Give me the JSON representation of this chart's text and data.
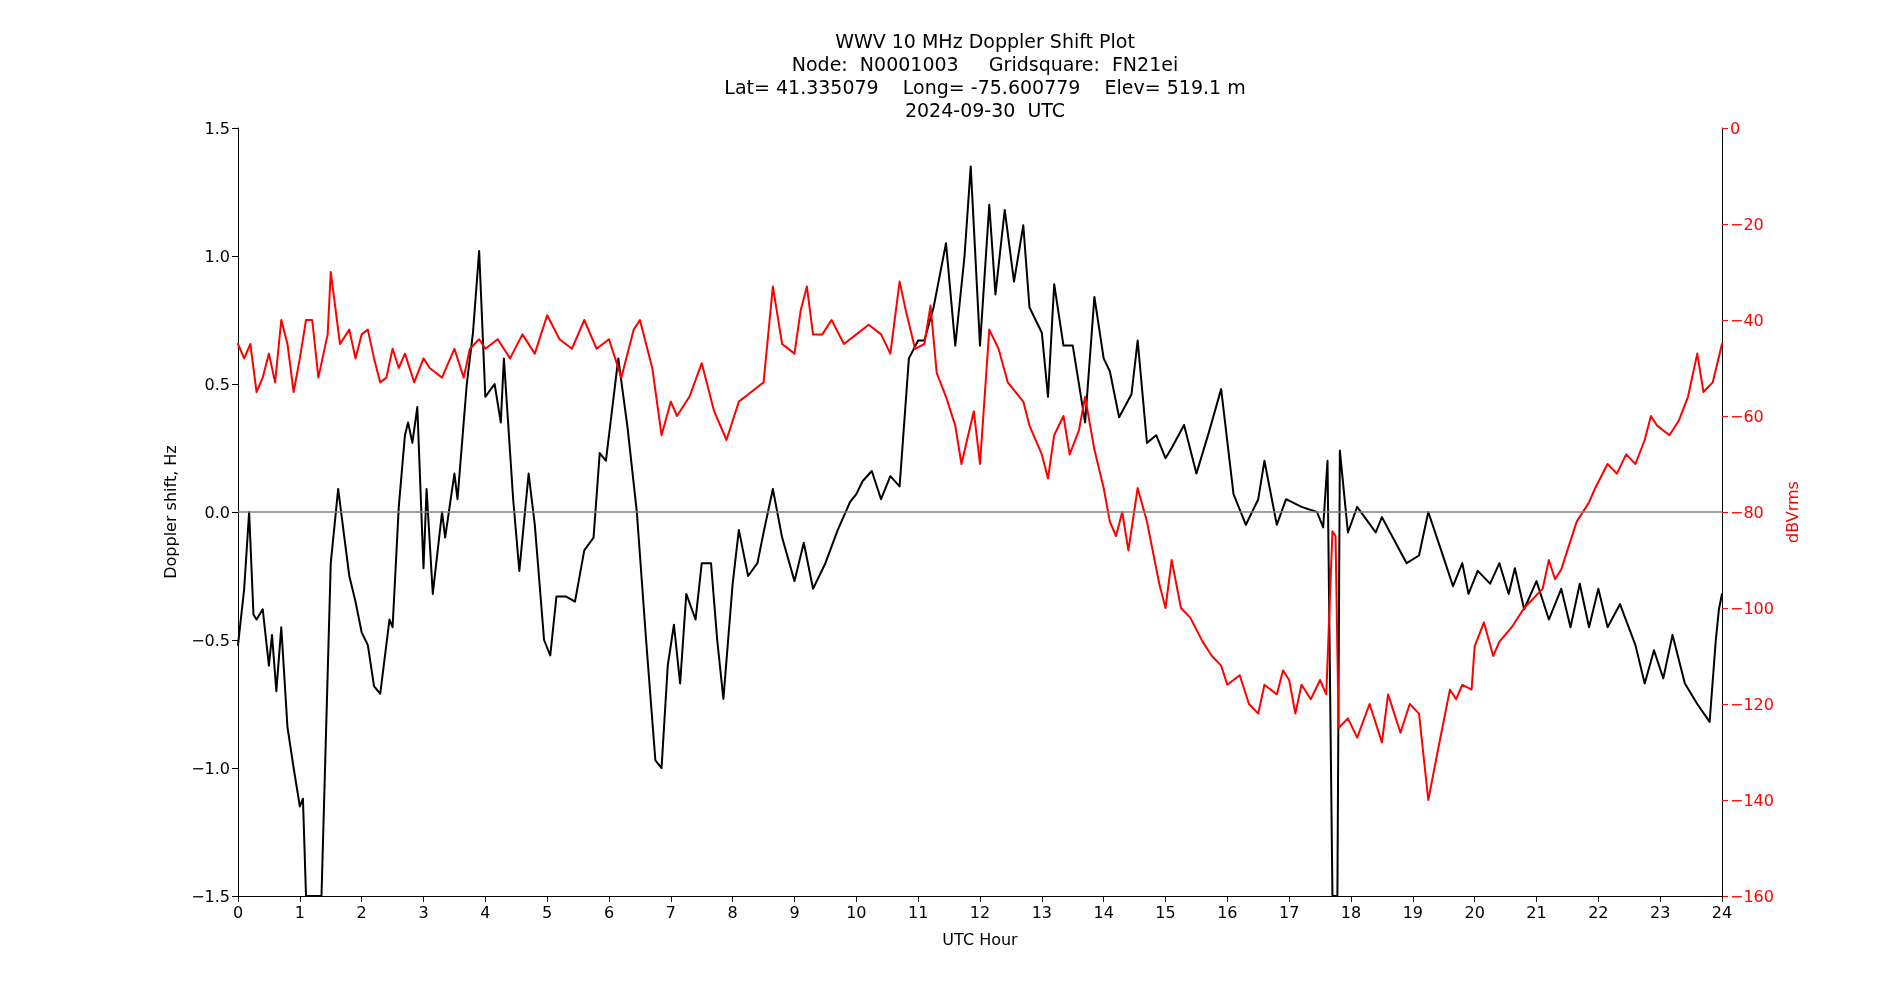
{
  "chart_data": {
    "type": "line",
    "title": "WWV 10 MHz Doppler Shift Plot",
    "subtitle": "Node:  N0001003     Gridsquare:  FN21ei\nLat= 41.335079    Long= -75.600779    Elev= 519.1 m\n2024-09-30  UTC",
    "xlabel": "UTC Hour",
    "ylabel": "Doppler shift, Hz",
    "y2label": "dBVrms",
    "xlim": [
      0,
      24
    ],
    "xticks": [
      0,
      1,
      2,
      3,
      4,
      5,
      6,
      7,
      8,
      9,
      10,
      11,
      12,
      13,
      14,
      15,
      16,
      17,
      18,
      19,
      20,
      21,
      22,
      23,
      24
    ],
    "ylim": [
      -1.5,
      1.5
    ],
    "yticks": [
      {
        "value": -1.5,
        "label": "−1.5"
      },
      {
        "value": -1,
        "label": "−1.0"
      },
      {
        "value": -0.5,
        "label": "−0.5"
      },
      {
        "value": 0,
        "label": "0.0"
      },
      {
        "value": 0.5,
        "label": "0.5"
      },
      {
        "value": 1,
        "label": "1.0"
      },
      {
        "value": 1.5,
        "label": "1.5"
      }
    ],
    "y2lim": [
      -160,
      0
    ],
    "y2ticks": [
      {
        "value": -160,
        "label": "−160"
      },
      {
        "value": -140,
        "label": "−140"
      },
      {
        "value": -120,
        "label": "−120"
      },
      {
        "value": -100,
        "label": "−100"
      },
      {
        "value": -80,
        "label": "−80"
      },
      {
        "value": -60,
        "label": "−60"
      },
      {
        "value": -40,
        "label": "−40"
      },
      {
        "value": -20,
        "label": "−20"
      },
      0
    ],
    "grid": false,
    "ref_lines": [
      {
        "axis": "y",
        "value": 0,
        "color": "#808080"
      }
    ],
    "series": [
      {
        "color": "#000000",
        "x": [
          0,
          0.1,
          0.18,
          0.25,
          0.3,
          0.4,
          0.5,
          0.55,
          0.62,
          0.7,
          0.8,
          0.9,
          1.0,
          1.05,
          1.1,
          1.35,
          1.5,
          1.62,
          1.8,
          1.9,
          2.0,
          2.1,
          2.2,
          2.3,
          2.45,
          2.5,
          2.6,
          2.7,
          2.75,
          2.82,
          2.9,
          3.0,
          3.05,
          3.15,
          3.3,
          3.35,
          3.5,
          3.55,
          3.7,
          3.8,
          3.9,
          4.0,
          4.15,
          4.25,
          4.3,
          4.45,
          4.55,
          4.7,
          4.8,
          4.95,
          5.05,
          5.15,
          5.3,
          5.45,
          5.6,
          5.75,
          5.85,
          5.95,
          6.05,
          6.15,
          6.3,
          6.45,
          6.6,
          6.75,
          6.85,
          6.95,
          7.05,
          7.15,
          7.25,
          7.4,
          7.5,
          7.65,
          7.75,
          7.85,
          8.0,
          8.1,
          8.25,
          8.4,
          8.5,
          8.65,
          8.8,
          9.0,
          9.15,
          9.3,
          9.5,
          9.7,
          9.9,
          10.0,
          10.1,
          10.25,
          10.4,
          10.55,
          10.7,
          10.85,
          11.0,
          11.1,
          11.25,
          11.45,
          11.6,
          11.75,
          11.85,
          12.0,
          12.15,
          12.25,
          12.4,
          12.55,
          12.7,
          12.8,
          13.0,
          13.1,
          13.2,
          13.35,
          13.5,
          13.7,
          13.85,
          14.0,
          14.1,
          14.25,
          14.45,
          14.55,
          14.7,
          14.85,
          15.0,
          15.1,
          15.3,
          15.5,
          15.7,
          15.9,
          16.1,
          16.3,
          16.5,
          16.6,
          16.8,
          16.95,
          17.2,
          17.45,
          17.55,
          17.62,
          17.7,
          17.78,
          17.82,
          17.95,
          18.1,
          18.25,
          18.4,
          18.5,
          18.7,
          18.9,
          19.1,
          19.25,
          19.5,
          19.65,
          19.8,
          19.9,
          20.05,
          20.25,
          20.4,
          20.55,
          20.65,
          20.8,
          21.0,
          21.2,
          21.4,
          21.55,
          21.7,
          21.85,
          22.0,
          22.15,
          22.35,
          22.6,
          22.75,
          22.9,
          23.05,
          23.2,
          23.4,
          23.6,
          23.8,
          23.9,
          23.95,
          24.0
        ],
        "values": [
          -0.52,
          -0.3,
          0.0,
          -0.4,
          -0.42,
          -0.38,
          -0.6,
          -0.48,
          -0.7,
          -0.45,
          -0.84,
          -1.0,
          -1.15,
          -1.12,
          -1.5,
          -1.5,
          -0.2,
          0.09,
          -0.25,
          -0.35,
          -0.47,
          -0.52,
          -0.68,
          -0.71,
          -0.42,
          -0.45,
          0.02,
          0.3,
          0.35,
          0.27,
          0.41,
          -0.22,
          0.09,
          -0.32,
          0.0,
          -0.1,
          0.15,
          0.05,
          0.5,
          0.7,
          1.02,
          0.45,
          0.5,
          0.35,
          0.6,
          0.05,
          -0.23,
          0.15,
          -0.05,
          -0.5,
          -0.56,
          -0.33,
          -0.33,
          -0.35,
          -0.15,
          -0.1,
          0.23,
          0.2,
          0.4,
          0.6,
          0.33,
          0.0,
          -0.5,
          -0.97,
          -1.0,
          -0.6,
          -0.44,
          -0.67,
          -0.32,
          -0.42,
          -0.2,
          -0.2,
          -0.5,
          -0.73,
          -0.28,
          -0.07,
          -0.25,
          -0.2,
          -0.08,
          0.09,
          -0.1,
          -0.27,
          -0.12,
          -0.3,
          -0.2,
          -0.07,
          0.04,
          0.07,
          0.12,
          0.16,
          0.05,
          0.14,
          0.1,
          0.6,
          0.67,
          0.67,
          0.8,
          1.05,
          0.65,
          1.0,
          1.35,
          0.65,
          1.2,
          0.85,
          1.18,
          0.9,
          1.12,
          0.8,
          0.7,
          0.45,
          0.89,
          0.65,
          0.65,
          0.35,
          0.84,
          0.6,
          0.55,
          0.37,
          0.46,
          0.67,
          0.27,
          0.3,
          0.21,
          0.25,
          0.34,
          0.15,
          0.31,
          0.48,
          0.07,
          -0.05,
          0.05,
          0.2,
          -0.05,
          0.05,
          0.02,
          0.0,
          -0.06,
          0.2,
          -1.5,
          -1.5,
          0.24,
          -0.08,
          0.02,
          -0.03,
          -0.08,
          -0.02,
          -0.11,
          -0.2,
          -0.17,
          0.0,
          -0.18,
          -0.29,
          -0.2,
          -0.32,
          -0.23,
          -0.28,
          -0.2,
          -0.32,
          -0.22,
          -0.38,
          -0.27,
          -0.42,
          -0.3,
          -0.45,
          -0.28,
          -0.45,
          -0.3,
          -0.45,
          -0.36,
          -0.52,
          -0.67,
          -0.54,
          -0.65,
          -0.48,
          -0.67,
          -0.75,
          -0.82,
          -0.5,
          -0.38,
          -0.32
        ]
      },
      {
        "color": "#ff0000",
        "axis": "y2",
        "x": [
          0,
          0.1,
          0.2,
          0.3,
          0.4,
          0.5,
          0.6,
          0.7,
          0.8,
          0.9,
          1.0,
          1.1,
          1.2,
          1.3,
          1.45,
          1.5,
          1.65,
          1.8,
          1.9,
          2.0,
          2.1,
          2.2,
          2.3,
          2.4,
          2.5,
          2.6,
          2.7,
          2.85,
          3.0,
          3.1,
          3.3,
          3.4,
          3.5,
          3.65,
          3.75,
          3.9,
          4.0,
          4.2,
          4.4,
          4.6,
          4.8,
          5.0,
          5.2,
          5.4,
          5.6,
          5.8,
          6.0,
          6.2,
          6.4,
          6.5,
          6.7,
          6.85,
          7.0,
          7.1,
          7.3,
          7.5,
          7.7,
          7.9,
          8.1,
          8.3,
          8.5,
          8.65,
          8.8,
          9.0,
          9.1,
          9.2,
          9.3,
          9.45,
          9.6,
          9.8,
          10.0,
          10.2,
          10.4,
          10.55,
          10.7,
          10.8,
          10.95,
          11.1,
          11.2,
          11.3,
          11.45,
          11.6,
          11.7,
          11.9,
          12.0,
          12.15,
          12.3,
          12.45,
          12.7,
          12.8,
          13.0,
          13.1,
          13.2,
          13.35,
          13.45,
          13.6,
          13.7,
          13.85,
          14.0,
          14.1,
          14.2,
          14.3,
          14.4,
          14.55,
          14.7,
          14.9,
          15.0,
          15.1,
          15.25,
          15.4,
          15.6,
          15.75,
          15.9,
          16.0,
          16.2,
          16.35,
          16.5,
          16.6,
          16.8,
          16.9,
          17.0,
          17.1,
          17.2,
          17.35,
          17.5,
          17.6,
          17.7,
          17.75,
          17.8,
          17.95,
          18.1,
          18.3,
          18.5,
          18.6,
          18.8,
          18.95,
          19.1,
          19.25,
          19.4,
          19.6,
          19.7,
          19.8,
          19.95,
          20.0,
          20.15,
          20.3,
          20.4,
          20.6,
          20.8,
          20.95,
          21.1,
          21.2,
          21.3,
          21.4,
          21.5,
          21.65,
          21.85,
          21.95,
          22.15,
          22.3,
          22.45,
          22.6,
          22.75,
          22.85,
          22.95,
          23.15,
          23.3,
          23.45,
          23.6,
          23.7,
          23.85,
          24.0
        ],
        "values": [
          -45,
          -48,
          -45,
          -55,
          -52,
          -47,
          -53,
          -40,
          -45,
          -55,
          -48,
          -40,
          -40,
          -52,
          -43,
          -30,
          -45,
          -42,
          -48,
          -43,
          -42,
          -48,
          -53,
          -52,
          -46,
          -50,
          -47,
          -53,
          -48,
          -50,
          -52,
          -49,
          -46,
          -52,
          -46,
          -44,
          -46,
          -44,
          -48,
          -43,
          -47,
          -39,
          -44,
          -46,
          -40,
          -46,
          -44,
          -52,
          -42,
          -40,
          -50,
          -64,
          -57,
          -60,
          -56,
          -49,
          -59,
          -65,
          -57,
          -55,
          -53,
          -33,
          -45,
          -47,
          -38,
          -33,
          -43,
          -43,
          -40,
          -45,
          -43,
          -41,
          -43,
          -47,
          -32,
          -38,
          -46,
          -45,
          -37,
          -51,
          -56,
          -62,
          -70,
          -59,
          -70,
          -42,
          -46,
          -53,
          -57,
          -62,
          -68,
          -73,
          -64,
          -60,
          -68,
          -63,
          -56,
          -67,
          -75,
          -82,
          -85,
          -80,
          -88,
          -75,
          -82,
          -95,
          -100,
          -90,
          -100,
          -102,
          -107,
          -110,
          -112,
          -116,
          -114,
          -120,
          -122,
          -116,
          -118,
          -113,
          -115,
          -122,
          -116,
          -119,
          -115,
          -118,
          -84,
          -85,
          -125,
          -123,
          -127,
          -120,
          -128,
          -118,
          -126,
          -120,
          -122,
          -140,
          -130,
          -117,
          -119,
          -116,
          -117,
          -108,
          -103,
          -110,
          -107,
          -104,
          -100,
          -98,
          -96,
          -90,
          -94,
          -92,
          -88,
          -82,
          -78,
          -75,
          -70,
          -72,
          -68,
          -70,
          -65,
          -60,
          -62,
          -64,
          -61,
          -56,
          -47,
          -55,
          -53,
          -45
        ]
      }
    ]
  }
}
